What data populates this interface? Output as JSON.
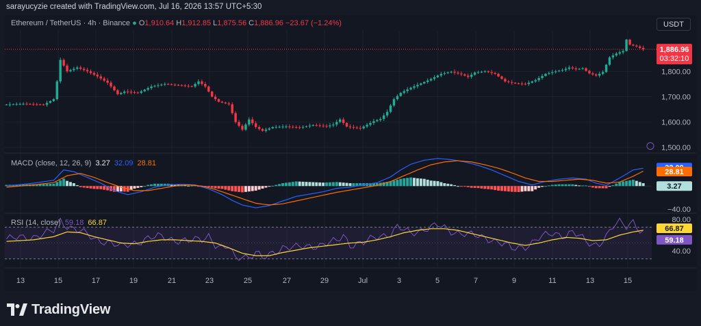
{
  "credit": "sarayucyzie created with TradingView.com, Jul 16, 2026 13:57 UTC+5:30",
  "symbol": {
    "name": "Ethereum / TetherUS · 4h · Binance",
    "o_label": "O",
    "o_value": "1,910.64",
    "h_label": "H",
    "h_value": "1,912.85",
    "l_label": "L",
    "l_value": "1,875.56",
    "c_label": "C",
    "c_value": "1,886.96",
    "change": "−23.67 (−1.24%)"
  },
  "currency_badge": "USDT",
  "price_badge": {
    "price": "1,886.96",
    "countdown": "03:32:10",
    "color": "#f23645"
  },
  "macd_label": {
    "text": "MACD (close, 12, 26, 9)",
    "hist": "3.27",
    "macd": "32.09",
    "signal": "28.81"
  },
  "rsi_label": {
    "text": "RSI (14, close)",
    "rsi": "59.18",
    "ma": "66.87"
  },
  "brand": "TradingView",
  "colors": {
    "up": "#22ab94",
    "down": "#f23645",
    "macd": "#2962ff",
    "signal": "#ff6d00",
    "rsi": "#7e57c2",
    "rsi_ma": "#fdd835",
    "grid": "#1e222d"
  },
  "chart_data": [
    {
      "type": "candlestick",
      "title": "Ethereum / TetherUS · 4h · Binance",
      "x_ticks": [
        "13",
        "15",
        "17",
        "19",
        "21",
        "23",
        "25",
        "27",
        "29",
        "Jul",
        "3",
        "5",
        "7",
        "9",
        "11",
        "13",
        "15"
      ],
      "y_ticks": [
        "1,800.00",
        "1,700.00",
        "1,600.00",
        "1,500.00"
      ],
      "ylim": [
        1480,
        1960
      ],
      "grid": true,
      "close_path": [
        [
          0,
          1668
        ],
        [
          6,
          1672
        ],
        [
          12,
          1668
        ],
        [
          15,
          1690
        ],
        [
          16,
          1760
        ],
        [
          17,
          1845
        ],
        [
          19,
          1800
        ],
        [
          22,
          1815
        ],
        [
          25,
          1800
        ],
        [
          28,
          1780
        ],
        [
          31,
          1755
        ],
        [
          34,
          1710
        ],
        [
          36,
          1720
        ],
        [
          40,
          1715
        ],
        [
          44,
          1740
        ],
        [
          48,
          1750
        ],
        [
          52,
          1745
        ],
        [
          56,
          1740
        ],
        [
          58,
          1760
        ],
        [
          60,
          1740
        ],
        [
          62,
          1700
        ],
        [
          64,
          1680
        ],
        [
          67,
          1670
        ],
        [
          69,
          1600
        ],
        [
          71,
          1570
        ],
        [
          73,
          1610
        ],
        [
          75,
          1580
        ],
        [
          77,
          1565
        ],
        [
          80,
          1580
        ],
        [
          84,
          1582
        ],
        [
          88,
          1578
        ],
        [
          92,
          1588
        ],
        [
          96,
          1583
        ],
        [
          98,
          1590
        ],
        [
          100,
          1610
        ],
        [
          102,
          1582
        ],
        [
          106,
          1575
        ],
        [
          110,
          1603
        ],
        [
          112,
          1612
        ],
        [
          114,
          1640
        ],
        [
          116,
          1690
        ],
        [
          118,
          1715
        ],
        [
          121,
          1735
        ],
        [
          124,
          1752
        ],
        [
          127,
          1770
        ],
        [
          130,
          1790
        ],
        [
          133,
          1798
        ],
        [
          136,
          1788
        ],
        [
          138,
          1778
        ],
        [
          140,
          1795
        ],
        [
          143,
          1800
        ],
        [
          146,
          1790
        ],
        [
          149,
          1760
        ],
        [
          152,
          1752
        ],
        [
          155,
          1750
        ],
        [
          158,
          1765
        ],
        [
          161,
          1790
        ],
        [
          164,
          1800
        ],
        [
          166,
          1805
        ],
        [
          168,
          1815
        ],
        [
          170,
          1808
        ],
        [
          172,
          1812
        ],
        [
          174,
          1792
        ],
        [
          176,
          1783
        ],
        [
          178,
          1797
        ],
        [
          180,
          1855
        ],
        [
          182,
          1870
        ],
        [
          184,
          1880
        ],
        [
          185,
          1925
        ],
        [
          186,
          1905
        ],
        [
          188,
          1898
        ],
        [
          190,
          1887
        ]
      ],
      "last_price": 1886.96,
      "last_price_label": "1,886.96",
      "countdown_label": "03:32:10"
    },
    {
      "type": "line+histogram",
      "title": "MACD (close, 12, 26, 9)",
      "series": [
        {
          "name": "MACD",
          "value_label": "32.09",
          "path": [
            [
              0,
              0
            ],
            [
              8,
              5
            ],
            [
              14,
              10
            ],
            [
              17,
              28
            ],
            [
              20,
              25
            ],
            [
              24,
              15
            ],
            [
              28,
              5
            ],
            [
              32,
              -8
            ],
            [
              36,
              -15
            ],
            [
              40,
              -10
            ],
            [
              44,
              -2
            ],
            [
              48,
              2
            ],
            [
              52,
              3
            ],
            [
              56,
              2
            ],
            [
              60,
              -5
            ],
            [
              64,
              -15
            ],
            [
              67,
              -25
            ],
            [
              70,
              -33
            ],
            [
              74,
              -38
            ],
            [
              78,
              -34
            ],
            [
              82,
              -26
            ],
            [
              86,
              -18
            ],
            [
              90,
              -14
            ],
            [
              94,
              -10
            ],
            [
              98,
              -4
            ],
            [
              102,
              -2
            ],
            [
              106,
              2
            ],
            [
              110,
              6
            ],
            [
              114,
              16
            ],
            [
              117,
              28
            ],
            [
              120,
              38
            ],
            [
              124,
              45
            ],
            [
              128,
              48
            ],
            [
              132,
              46
            ],
            [
              136,
              42
            ],
            [
              140,
              36
            ],
            [
              144,
              28
            ],
            [
              148,
              18
            ],
            [
              152,
              8
            ],
            [
              156,
              2
            ],
            [
              160,
              8
            ],
            [
              164,
              12
            ],
            [
              168,
              14
            ],
            [
              172,
              12
            ],
            [
              175,
              5
            ],
            [
              178,
              1
            ],
            [
              182,
              14
            ],
            [
              186,
              28
            ],
            [
              190,
              32
            ]
          ]
        },
        {
          "name": "Signal",
          "value_label": "28.81",
          "path": [
            [
              0,
              -2
            ],
            [
              8,
              2
            ],
            [
              14,
              6
            ],
            [
              18,
              18
            ],
            [
              22,
              22
            ],
            [
              26,
              15
            ],
            [
              30,
              6
            ],
            [
              34,
              -2
            ],
            [
              38,
              -8
            ],
            [
              42,
              -8
            ],
            [
              46,
              -4
            ],
            [
              50,
              0
            ],
            [
              54,
              2
            ],
            [
              58,
              0
            ],
            [
              62,
              -6
            ],
            [
              66,
              -14
            ],
            [
              70,
              -22
            ],
            [
              74,
              -30
            ],
            [
              78,
              -33
            ],
            [
              82,
              -31
            ],
            [
              86,
              -26
            ],
            [
              90,
              -21
            ],
            [
              94,
              -16
            ],
            [
              98,
              -11
            ],
            [
              102,
              -7
            ],
            [
              106,
              -3
            ],
            [
              110,
              1
            ],
            [
              114,
              8
            ],
            [
              118,
              18
            ],
            [
              122,
              28
            ],
            [
              126,
              37
            ],
            [
              130,
              42
            ],
            [
              134,
              44
            ],
            [
              138,
              42
            ],
            [
              142,
              37
            ],
            [
              146,
              31
            ],
            [
              150,
              23
            ],
            [
              154,
              14
            ],
            [
              158,
              8
            ],
            [
              162,
              8
            ],
            [
              166,
              10
            ],
            [
              170,
              12
            ],
            [
              174,
              10
            ],
            [
              178,
              5
            ],
            [
              182,
              7
            ],
            [
              186,
              17
            ],
            [
              190,
              29
            ]
          ]
        },
        {
          "name": "Histogram",
          "value_label": "3.27"
        }
      ],
      "y_ticks": [
        "−40.00"
      ],
      "ylim": [
        -45,
        55
      ]
    },
    {
      "type": "line",
      "title": "RSI (14, close)",
      "series": [
        {
          "name": "RSI",
          "value_label": "59.18",
          "path": [
            [
              0,
              55
            ],
            [
              8,
              58
            ],
            [
              14,
              65
            ],
            [
              16,
              78
            ],
            [
              18,
              72
            ],
            [
              22,
              65
            ],
            [
              26,
              55
            ],
            [
              30,
              52
            ],
            [
              34,
              45
            ],
            [
              38,
              50
            ],
            [
              42,
              56
            ],
            [
              46,
              58
            ],
            [
              50,
              54
            ],
            [
              54,
              52
            ],
            [
              58,
              55
            ],
            [
              60,
              60
            ],
            [
              62,
              48
            ],
            [
              64,
              42
            ],
            [
              66,
              45
            ],
            [
              68,
              30
            ],
            [
              70,
              35
            ],
            [
              72,
              32
            ],
            [
              74,
              38
            ],
            [
              76,
              30
            ],
            [
              78,
              35
            ],
            [
              82,
              45
            ],
            [
              86,
              44
            ],
            [
              90,
              46
            ],
            [
              94,
              48
            ],
            [
              98,
              52
            ],
            [
              100,
              60
            ],
            [
              102,
              48
            ],
            [
              106,
              50
            ],
            [
              110,
              58
            ],
            [
              114,
              62
            ],
            [
              116,
              70
            ],
            [
              118,
              66
            ],
            [
              120,
              62
            ],
            [
              124,
              68
            ],
            [
              128,
              72
            ],
            [
              132,
              65
            ],
            [
              136,
              62
            ],
            [
              140,
              58
            ],
            [
              144,
              55
            ],
            [
              148,
              48
            ],
            [
              150,
              42
            ],
            [
              154,
              46
            ],
            [
              158,
              56
            ],
            [
              162,
              62
            ],
            [
              166,
              60
            ],
            [
              168,
              64
            ],
            [
              170,
              58
            ],
            [
              172,
              52
            ],
            [
              174,
              48
            ],
            [
              176,
              50
            ],
            [
              178,
              58
            ],
            [
              180,
              70
            ],
            [
              182,
              76
            ],
            [
              184,
              72
            ],
            [
              186,
              78
            ],
            [
              188,
              66
            ],
            [
              190,
              59
            ]
          ]
        },
        {
          "name": "RSI-based MA",
          "value_label": "66.87",
          "path": [
            [
              0,
              52
            ],
            [
              8,
              54
            ],
            [
              14,
              58
            ],
            [
              18,
              64
            ],
            [
              22,
              63
            ],
            [
              26,
              58
            ],
            [
              30,
              54
            ],
            [
              34,
              50
            ],
            [
              38,
              49
            ],
            [
              42,
              52
            ],
            [
              46,
              54
            ],
            [
              50,
              54
            ],
            [
              54,
              53
            ],
            [
              58,
              52
            ],
            [
              62,
              50
            ],
            [
              66,
              44
            ],
            [
              70,
              37
            ],
            [
              74,
              34
            ],
            [
              78,
              34
            ],
            [
              82,
              38
            ],
            [
              86,
              41
            ],
            [
              90,
              44
            ],
            [
              94,
              46
            ],
            [
              98,
              48
            ],
            [
              102,
              50
            ],
            [
              106,
              51
            ],
            [
              110,
              54
            ],
            [
              114,
              58
            ],
            [
              118,
              63
            ],
            [
              122,
              66
            ],
            [
              126,
              68
            ],
            [
              130,
              68
            ],
            [
              134,
              66
            ],
            [
              138,
              62
            ],
            [
              142,
              58
            ],
            [
              146,
              54
            ],
            [
              150,
              50
            ],
            [
              154,
              47
            ],
            [
              158,
              50
            ],
            [
              162,
              54
            ],
            [
              166,
              57
            ],
            [
              170,
              56
            ],
            [
              174,
              53
            ],
            [
              178,
              54
            ],
            [
              182,
              60
            ],
            [
              186,
              64
            ],
            [
              190,
              66.87
            ]
          ]
        }
      ],
      "y_ticks": [
        "80.00",
        "40.00"
      ],
      "band": [
        30,
        70
      ],
      "ylim": [
        22,
        85
      ]
    }
  ]
}
